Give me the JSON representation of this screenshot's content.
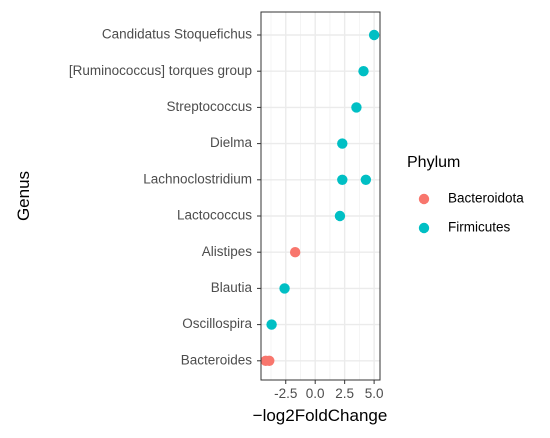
{
  "chart_data": {
    "type": "scatter",
    "xlabel": "−log2FoldChange",
    "ylabel": "Genus",
    "xlim": [
      -4.6,
      5.5
    ],
    "x_ticks": [
      {
        "value": -2.5,
        "label": "-2.5"
      },
      {
        "value": 0.0,
        "label": "0.0"
      },
      {
        "value": 2.5,
        "label": "2.5"
      },
      {
        "value": 5.0,
        "label": "5.0"
      }
    ],
    "categories": [
      "Candidatus Stoquefichus",
      "[Ruminococcus] torques group",
      "Streptococcus",
      "Dielma",
      "Lachnoclostridium",
      "Lactococcus",
      "Alistipes",
      "Blautia",
      "Oscillospira",
      "Bacteroides"
    ],
    "legend": {
      "title": "Phylum",
      "position": "right",
      "entries": [
        {
          "name": "Bacteroidota",
          "color": "#F8766D"
        },
        {
          "name": "Firmicutes",
          "color": "#00BFC4"
        }
      ]
    },
    "grid": true,
    "series": [
      {
        "name": "Bacteroidota",
        "color": "#F8766D",
        "points": [
          {
            "genus": "Alistipes",
            "x": -1.7
          },
          {
            "genus": "Bacteroides",
            "x": -4.2
          },
          {
            "genus": "Bacteroides",
            "x": -3.9
          }
        ]
      },
      {
        "name": "Firmicutes",
        "color": "#00BFC4",
        "points": [
          {
            "genus": "Candidatus Stoquefichus",
            "x": 5.0
          },
          {
            "genus": "[Ruminococcus] torques group",
            "x": 4.1
          },
          {
            "genus": "Streptococcus",
            "x": 3.5
          },
          {
            "genus": "Dielma",
            "x": 2.3
          },
          {
            "genus": "Lachnoclostridium",
            "x": 2.3
          },
          {
            "genus": "Lachnoclostridium",
            "x": 4.3
          },
          {
            "genus": "Lactococcus",
            "x": 2.1
          },
          {
            "genus": "Blautia",
            "x": -2.6
          },
          {
            "genus": "Oscillospira",
            "x": -3.7
          }
        ]
      }
    ]
  }
}
